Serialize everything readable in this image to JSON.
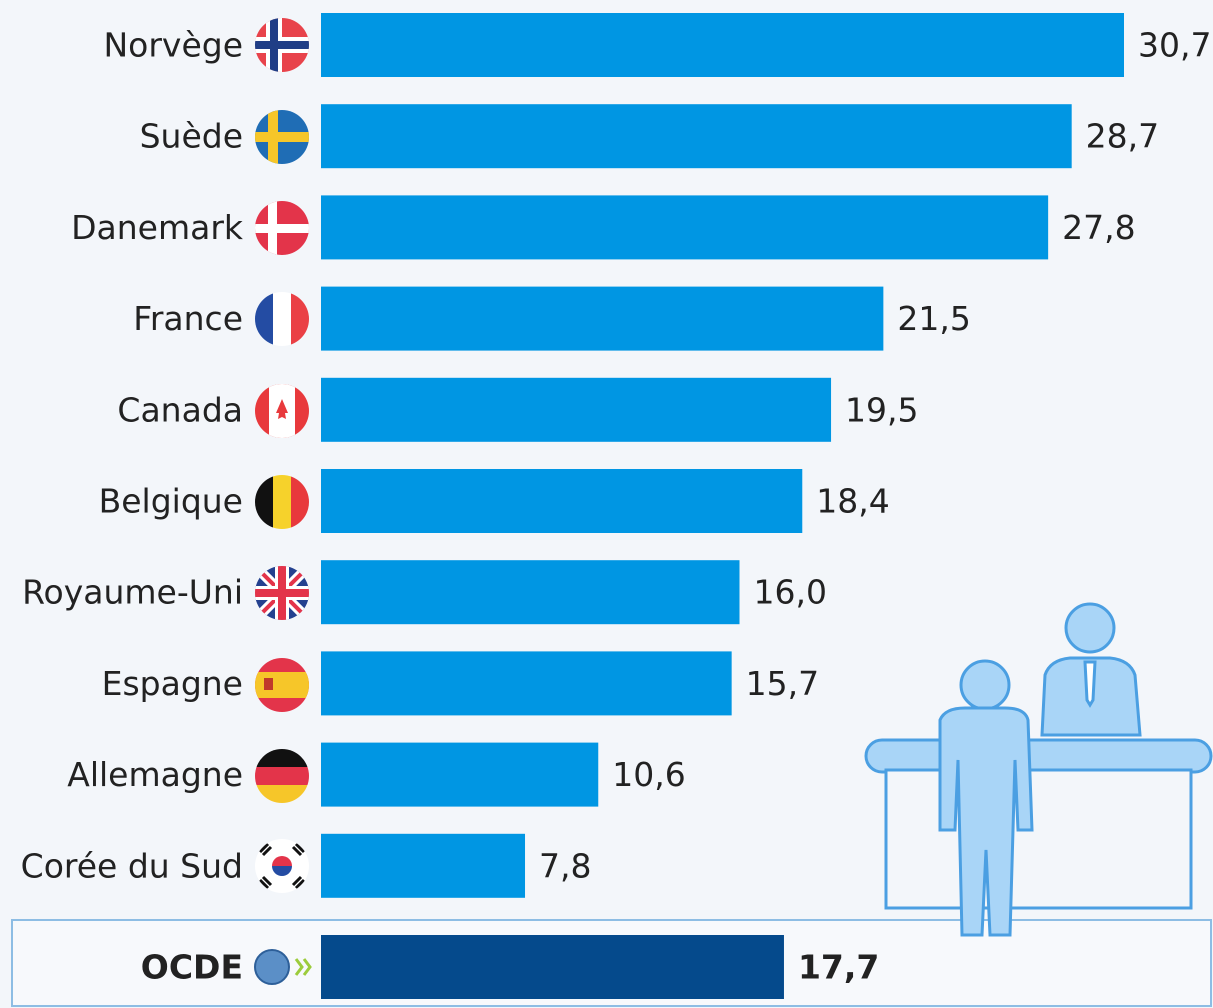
{
  "chart_data": {
    "type": "bar",
    "categories": [
      "Norvège",
      "Suède",
      "Danemark",
      "France",
      "Canada",
      "Belgique",
      "Royaume-Uni",
      "Espagne",
      "Allemagne",
      "Corée du Sud",
      "OCDE"
    ],
    "values": [
      30.7,
      28.7,
      27.8,
      21.5,
      19.5,
      18.4,
      16.0,
      15.7,
      10.6,
      7.8,
      17.7
    ],
    "value_labels": [
      "30,7",
      "28,7",
      "27,8",
      "21,5",
      "19,5",
      "18,4",
      "16,0",
      "15,7",
      "10,6",
      "7,8",
      "17,7"
    ],
    "colors": [
      "#0096e3",
      "#0096e3",
      "#0096e3",
      "#0096e3",
      "#0096e3",
      "#0096e3",
      "#0096e3",
      "#0096e3",
      "#0096e3",
      "#0096e3",
      "#054a8c"
    ]
  }
}
